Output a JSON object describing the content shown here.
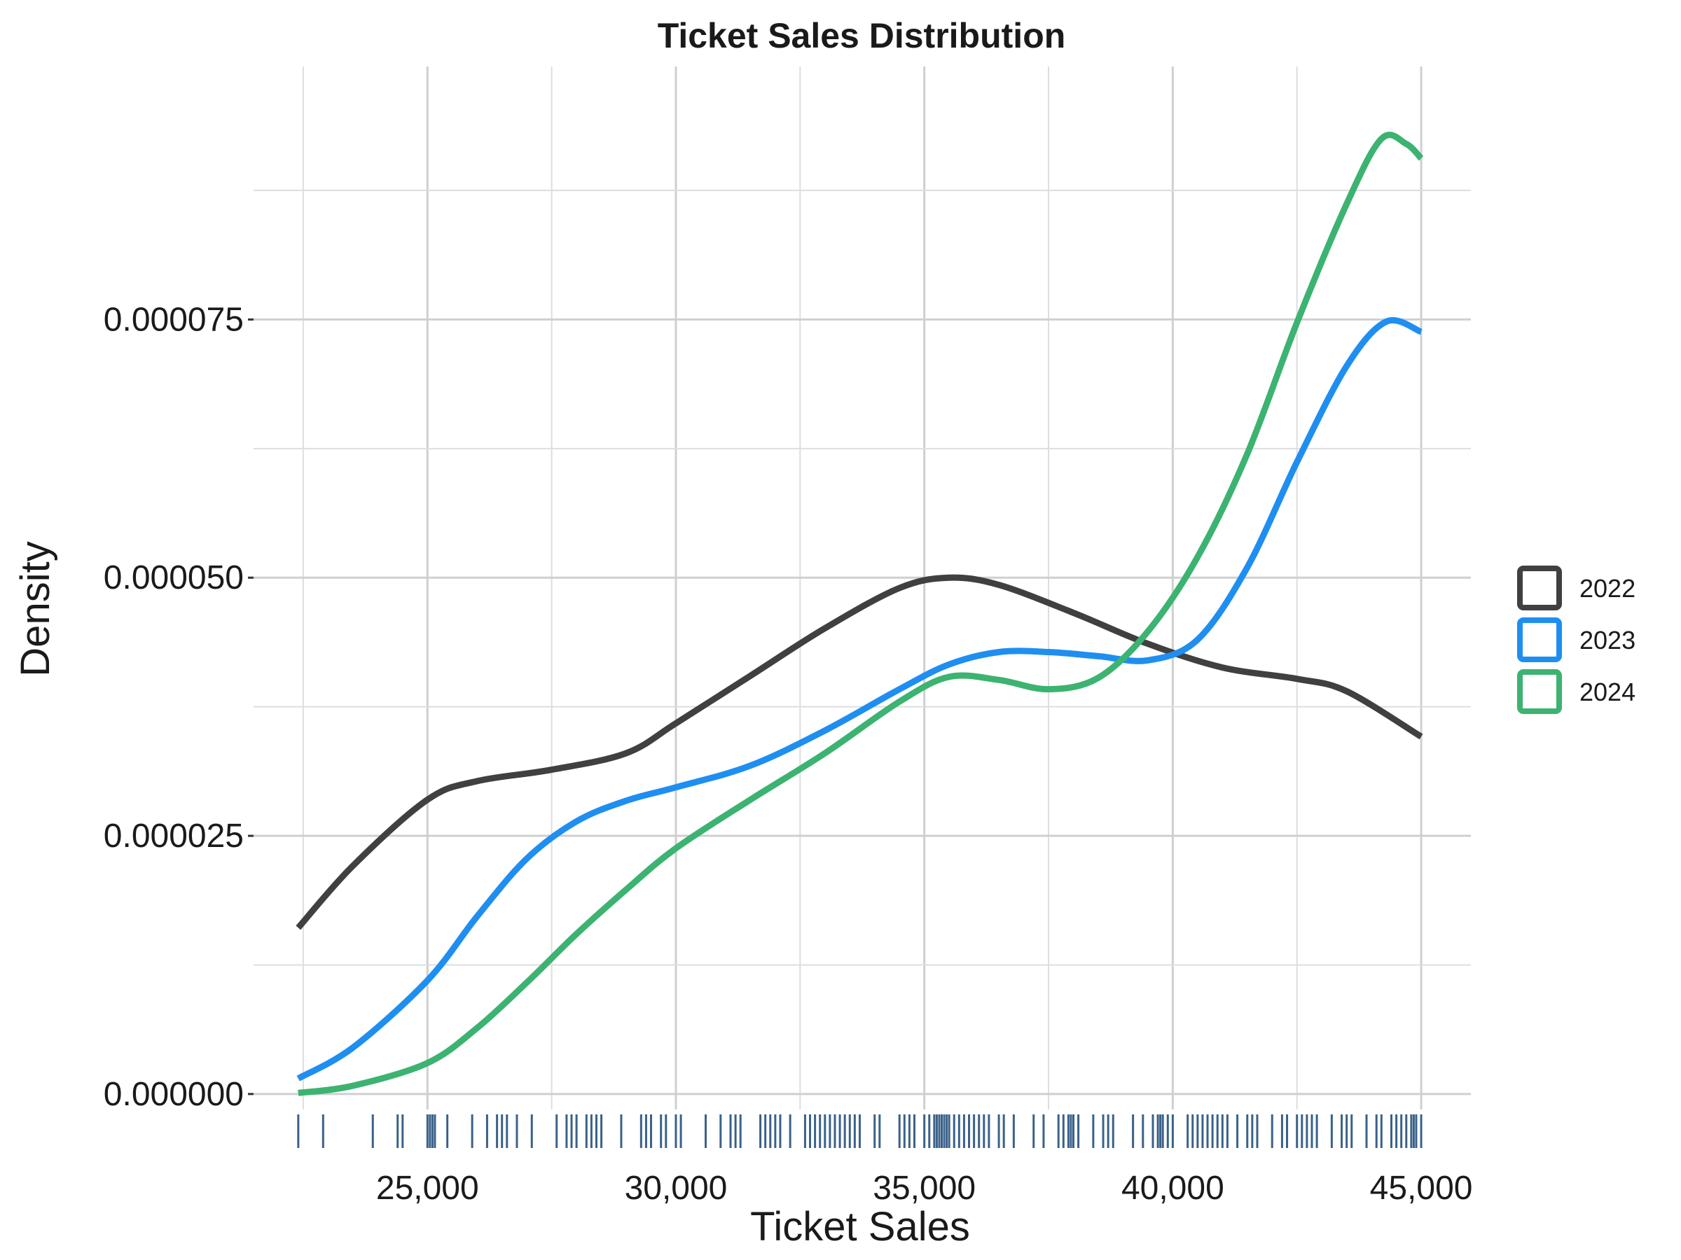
{
  "chart_data": {
    "type": "line",
    "title": "Ticket Sales Distribution",
    "xlabel": "Ticket Sales",
    "ylabel": "Density",
    "xlim": [
      21500,
      46000
    ],
    "ylim": [
      -1.5e-06,
      9.95e-05
    ],
    "x_ticks": [
      25000,
      30000,
      35000,
      40000,
      45000
    ],
    "x_tick_labels": [
      "25,000",
      "30,000",
      "35,000",
      "40,000",
      "45,000"
    ],
    "y_ticks": [
      0,
      2.5e-05,
      5e-05,
      7.5e-05
    ],
    "y_tick_labels": [
      "0.000000",
      "0.000025",
      "0.000050",
      "0.000075"
    ],
    "grid": true,
    "legend_position": "right",
    "series": [
      {
        "name": "2022",
        "color": "#404040",
        "points": [
          [
            22400,
            1.61e-05
          ],
          [
            23500,
            2.21e-05
          ],
          [
            25000,
            2.85e-05
          ],
          [
            26000,
            3.03e-05
          ],
          [
            27500,
            3.14e-05
          ],
          [
            29000,
            3.3e-05
          ],
          [
            30000,
            3.59e-05
          ],
          [
            31500,
            4.05e-05
          ],
          [
            33000,
            4.51e-05
          ],
          [
            34500,
            4.9e-05
          ],
          [
            35500,
            5e-05
          ],
          [
            36500,
            4.93e-05
          ],
          [
            38000,
            4.66e-05
          ],
          [
            39500,
            4.36e-05
          ],
          [
            41000,
            4.13e-05
          ],
          [
            42500,
            4.02e-05
          ],
          [
            43500,
            3.9e-05
          ],
          [
            45000,
            3.46e-05
          ]
        ]
      },
      {
        "name": "2023",
        "color": "#1f8ef1",
        "points": [
          [
            22400,
            1.5e-06
          ],
          [
            23500,
            4.5e-06
          ],
          [
            25000,
            1.1e-05
          ],
          [
            26000,
            1.72e-05
          ],
          [
            27000,
            2.28e-05
          ],
          [
            28000,
            2.64e-05
          ],
          [
            29000,
            2.84e-05
          ],
          [
            30000,
            2.97e-05
          ],
          [
            31500,
            3.18e-05
          ],
          [
            33000,
            3.52e-05
          ],
          [
            34500,
            3.92e-05
          ],
          [
            35500,
            4.16e-05
          ],
          [
            36500,
            4.28e-05
          ],
          [
            37500,
            4.28e-05
          ],
          [
            38500,
            4.24e-05
          ],
          [
            39500,
            4.2e-05
          ],
          [
            40500,
            4.4e-05
          ],
          [
            41500,
            5.1e-05
          ],
          [
            42500,
            6.12e-05
          ],
          [
            43500,
            7.05e-05
          ],
          [
            44300,
            7.48e-05
          ],
          [
            45000,
            7.38e-05
          ]
        ]
      },
      {
        "name": "2024",
        "color": "#3cb371",
        "points": [
          [
            22400,
            1e-07
          ],
          [
            23500,
            8e-07
          ],
          [
            25000,
            3e-06
          ],
          [
            26000,
            6.4e-06
          ],
          [
            27000,
            1.08e-05
          ],
          [
            28000,
            1.55e-05
          ],
          [
            29000,
            1.98e-05
          ],
          [
            30000,
            2.38e-05
          ],
          [
            31500,
            2.85e-05
          ],
          [
            33000,
            3.3e-05
          ],
          [
            34500,
            3.8e-05
          ],
          [
            35500,
            4.04e-05
          ],
          [
            36500,
            4.01e-05
          ],
          [
            37500,
            3.92e-05
          ],
          [
            38500,
            4.03e-05
          ],
          [
            39500,
            4.48e-05
          ],
          [
            40500,
            5.2e-05
          ],
          [
            41500,
            6.2e-05
          ],
          [
            42500,
            7.47e-05
          ],
          [
            43500,
            8.62e-05
          ],
          [
            44200,
            9.25e-05
          ],
          [
            44700,
            9.2e-05
          ],
          [
            45000,
            9.06e-05
          ]
        ]
      }
    ],
    "rug": {
      "color": "#3a6189",
      "x": [
        22400,
        22900,
        23900,
        24400,
        24500,
        25000,
        25050,
        25100,
        25150,
        25400,
        25900,
        26200,
        26400,
        26500,
        26600,
        26800,
        27100,
        27600,
        27800,
        27900,
        28000,
        28200,
        28300,
        28400,
        28500,
        28900,
        29300,
        29400,
        29500,
        29700,
        29800,
        30000,
        30100,
        30600,
        30900,
        31100,
        31200,
        31300,
        31700,
        31800,
        31900,
        32000,
        32100,
        32300,
        32600,
        32700,
        32800,
        32900,
        33000,
        33100,
        33200,
        33300,
        33400,
        33500,
        33600,
        33700,
        34000,
        34100,
        34500,
        34600,
        34700,
        34800,
        35000,
        35100,
        35200,
        35250,
        35300,
        35350,
        35400,
        35450,
        35500,
        35600,
        35700,
        35800,
        35900,
        36000,
        36100,
        36200,
        36300,
        36500,
        36600,
        36800,
        37200,
        37400,
        37700,
        37800,
        37900,
        37950,
        38000,
        38100,
        38400,
        38600,
        38700,
        38800,
        39200,
        39400,
        39600,
        39700,
        39750,
        39800,
        39900,
        40000,
        40300,
        40400,
        40500,
        40600,
        40700,
        40800,
        40900,
        41000,
        41100,
        41300,
        41500,
        41600,
        41700,
        42000,
        42200,
        42300,
        42500,
        42600,
        42700,
        42800,
        42900,
        43200,
        43400,
        43500,
        43600,
        43900,
        44100,
        44200,
        44400,
        44500,
        44600,
        44700,
        44800,
        44850,
        44900,
        45000
      ]
    }
  }
}
